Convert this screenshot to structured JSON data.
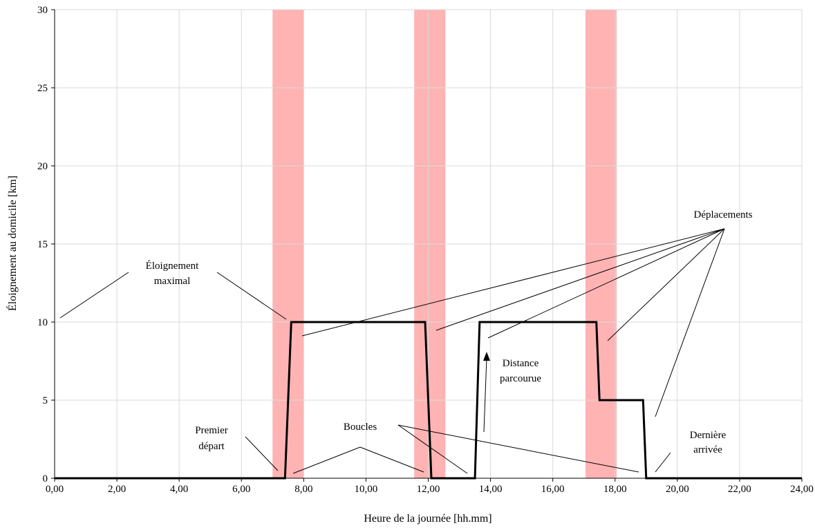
{
  "chart_data": {
    "type": "line",
    "title": "",
    "xlabel": "Heure de la journée [hh.mm]",
    "ylabel": "Éloignement au domicile [km]",
    "xlim": [
      0,
      24
    ],
    "ylim": [
      0,
      30
    ],
    "x_ticks": [
      "0,00",
      "2,00",
      "4,00",
      "6,00",
      "8,00",
      "10,00",
      "12,00",
      "14,00",
      "16,00",
      "18,00",
      "20,00",
      "22,00",
      "24,00"
    ],
    "y_ticks": [
      "0",
      "5",
      "10",
      "15",
      "20",
      "25",
      "30"
    ],
    "grid": true,
    "shaded_bands": [
      {
        "from": 7.0,
        "to": 8.0
      },
      {
        "from": 11.55,
        "to": 12.55
      },
      {
        "from": 17.05,
        "to": 18.05
      }
    ],
    "series": [
      {
        "x": [
          0,
          7.4,
          7.6,
          11.9,
          12.1,
          13.5,
          13.65,
          17.4,
          17.5,
          18.9,
          19.0,
          24
        ],
        "y": [
          0,
          0,
          10,
          10,
          0,
          0,
          10,
          10,
          5,
          5,
          0,
          0
        ]
      }
    ],
    "annotations": {
      "eloignement_line1": "Éloignement",
      "eloignement_line2": "maximal",
      "deplacements": "Déplacements",
      "distance_line1": "Distance",
      "distance_line2": "parcourue",
      "boucles": "Boucles",
      "premier_line1": "Premier",
      "premier_line2": "départ",
      "derniere_line1": "Dernière",
      "derniere_line2": "arrivée"
    }
  }
}
